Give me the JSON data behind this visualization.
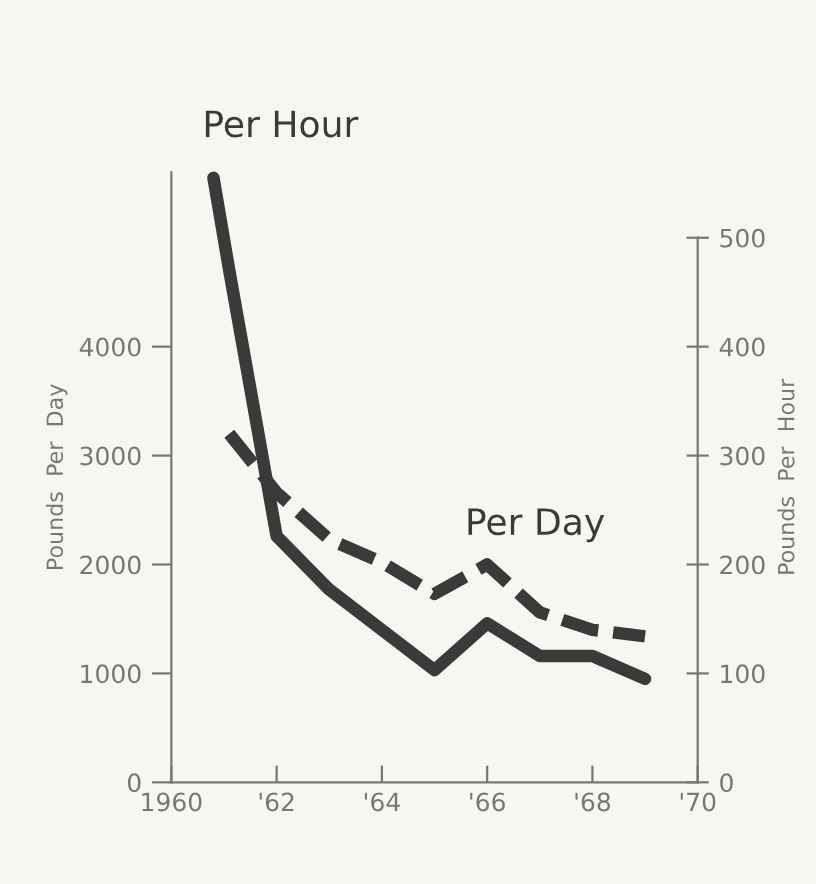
{
  "chart_data": {
    "type": "line",
    "xlim": [
      1960,
      1970
    ],
    "xticks": [
      {
        "value": 1960,
        "label": "1960"
      },
      {
        "value": 1962,
        "label": "'62"
      },
      {
        "value": 1964,
        "label": "'64"
      },
      {
        "value": 1966,
        "label": "'66"
      },
      {
        "value": 1968,
        "label": "'68"
      },
      {
        "value": 1970,
        "label": "'70"
      }
    ],
    "ylim": [
      0,
      5600
    ],
    "yticks": [
      0,
      1000,
      2000,
      3000,
      4000
    ],
    "y2lim": [
      0,
      560
    ],
    "y2ticks": [
      0,
      100,
      200,
      300,
      400,
      500
    ],
    "ylabel": "Pounds  Per  Day",
    "y2label": "Pounds  Per  Hour",
    "grid": false,
    "legend": false,
    "series": [
      {
        "name": "Per Hour",
        "axis": "y2",
        "color": "#3a3a3a",
        "line_style": "solid",
        "x": [
          1960.8,
          1961.1,
          1962,
          1963,
          1964,
          1965,
          1966,
          1967,
          1968,
          1969
        ],
        "values": [
          555,
          470,
          226,
          177,
          140,
          103,
          146,
          116,
          116,
          95
        ]
      },
      {
        "name": "Per Day",
        "axis": "y",
        "color": "#3a3a3a",
        "line_style": "dashed",
        "x": [
          1961.1,
          1962,
          1963,
          1964,
          1965,
          1966,
          1967,
          1968,
          1969
        ],
        "values": [
          3200,
          2660,
          2230,
          2020,
          1730,
          2000,
          1560,
          1400,
          1340
        ]
      }
    ]
  }
}
